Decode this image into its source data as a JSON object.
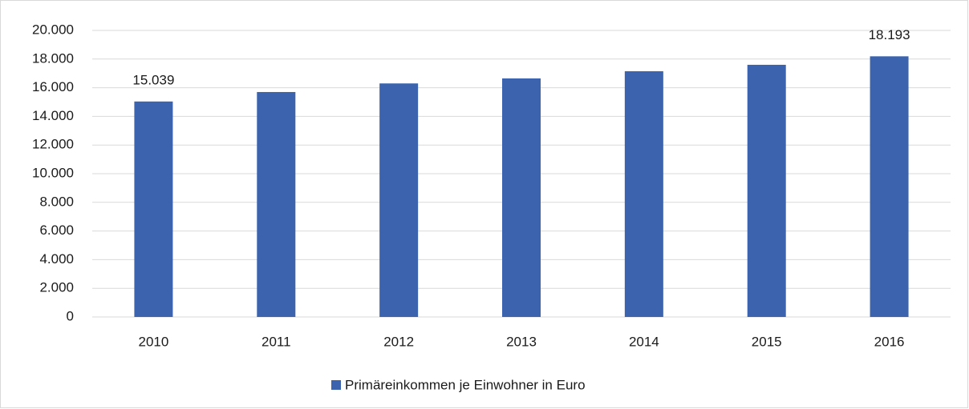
{
  "chart_data": {
    "type": "bar",
    "categories": [
      "2010",
      "2011",
      "2012",
      "2013",
      "2014",
      "2015",
      "2016"
    ],
    "series": [
      {
        "name": "Primäreinkommen je Einwohner in Euro",
        "color": "#3c64ae",
        "values": [
          15039,
          15700,
          16300,
          16650,
          17150,
          17600,
          18193
        ],
        "value_labels": [
          "15.039",
          null,
          null,
          null,
          null,
          null,
          "18.193"
        ]
      }
    ],
    "ylim": [
      0,
      20000
    ],
    "yticks": [
      0,
      {
        "value": 2000,
        "label": "2.000"
      },
      {
        "value": 4000,
        "label": "4.000"
      },
      {
        "value": 6000,
        "label": "6.000"
      },
      {
        "value": 8000,
        "label": "8.000"
      },
      {
        "value": 10000,
        "label": "10.000"
      },
      {
        "value": 12000,
        "label": "12.000"
      },
      {
        "value": 14000,
        "label": "14.000"
      },
      {
        "value": 16000,
        "label": "16.000"
      },
      {
        "value": 18000,
        "label": "18.000"
      },
      {
        "value": 20000,
        "label": "20.000"
      }
    ],
    "grid": true,
    "legend": "bottom"
  }
}
